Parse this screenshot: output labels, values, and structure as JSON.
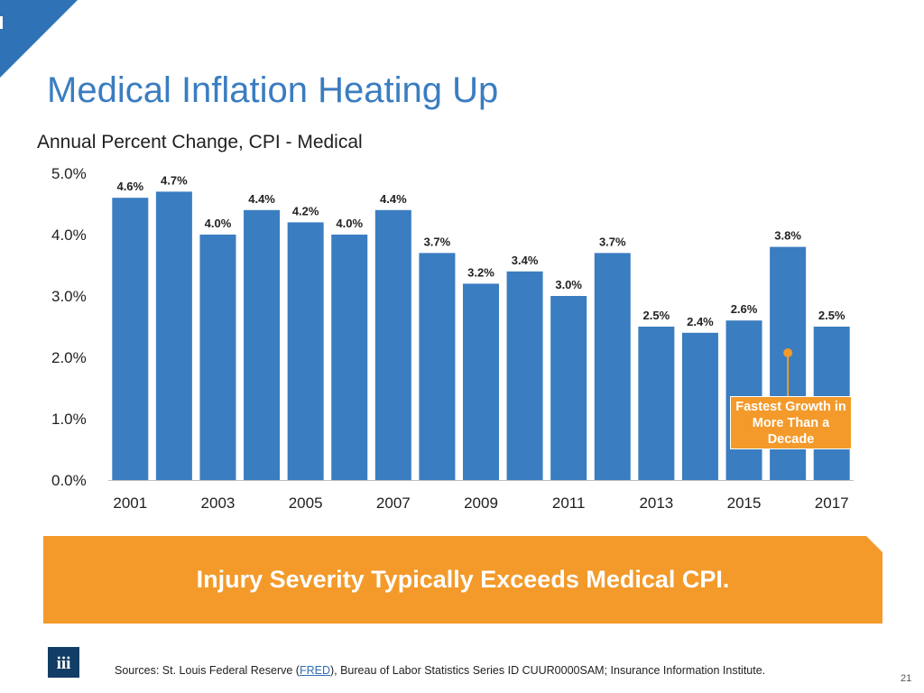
{
  "slide": {
    "title": "Medical Inflation Heating Up",
    "page_number": "21"
  },
  "chart_data": {
    "type": "bar",
    "title": "Annual Percent Change, CPI - Medical",
    "xlabel": "",
    "ylabel": "",
    "ylim": [
      0,
      5
    ],
    "y_ticks": [
      "0.0%",
      "1.0%",
      "2.0%",
      "3.0%",
      "4.0%",
      "5.0%"
    ],
    "x_tick_labels": [
      "2001",
      "2003",
      "2005",
      "2007",
      "2009",
      "2011",
      "2013",
      "2015",
      "2017"
    ],
    "categories": [
      "2001",
      "2002",
      "2003",
      "2004",
      "2005",
      "2006",
      "2007",
      "2008",
      "2009",
      "2010",
      "2011",
      "2012",
      "2013",
      "2014",
      "2015",
      "2016",
      "2017"
    ],
    "values": [
      4.6,
      4.7,
      4.0,
      4.4,
      4.2,
      4.0,
      4.4,
      3.7,
      3.2,
      3.4,
      3.0,
      3.7,
      2.5,
      2.4,
      2.6,
      3.8,
      2.5
    ],
    "data_labels": [
      "4.6%",
      "4.7%",
      "4.0%",
      "4.4%",
      "4.2%",
      "4.0%",
      "4.4%",
      "3.7%",
      "3.2%",
      "3.4%",
      "3.0%",
      "3.7%",
      "2.5%",
      "2.4%",
      "2.6%",
      "3.8%",
      "2.5%"
    ],
    "bar_color": "#3a7dc0",
    "annotation": {
      "text": "Fastest Growth in More Than a Decade",
      "target_category": "2016",
      "color": "#f39a2b"
    }
  },
  "banner": {
    "text": "Injury Severity Typically Exceeds Medical CPI."
  },
  "footer": {
    "sources_prefix": "Sources: St. Louis Federal Reserve (",
    "sources_link": "FRED",
    "sources_suffix": "), Bureau of Labor Statistics Series ID CUUR0000SAM; Insurance Information Institute.",
    "logo_text": "iii"
  },
  "colors": {
    "accent_blue": "#3a7dc0",
    "accent_orange": "#f39a2b",
    "logo_navy": "#123e66"
  }
}
